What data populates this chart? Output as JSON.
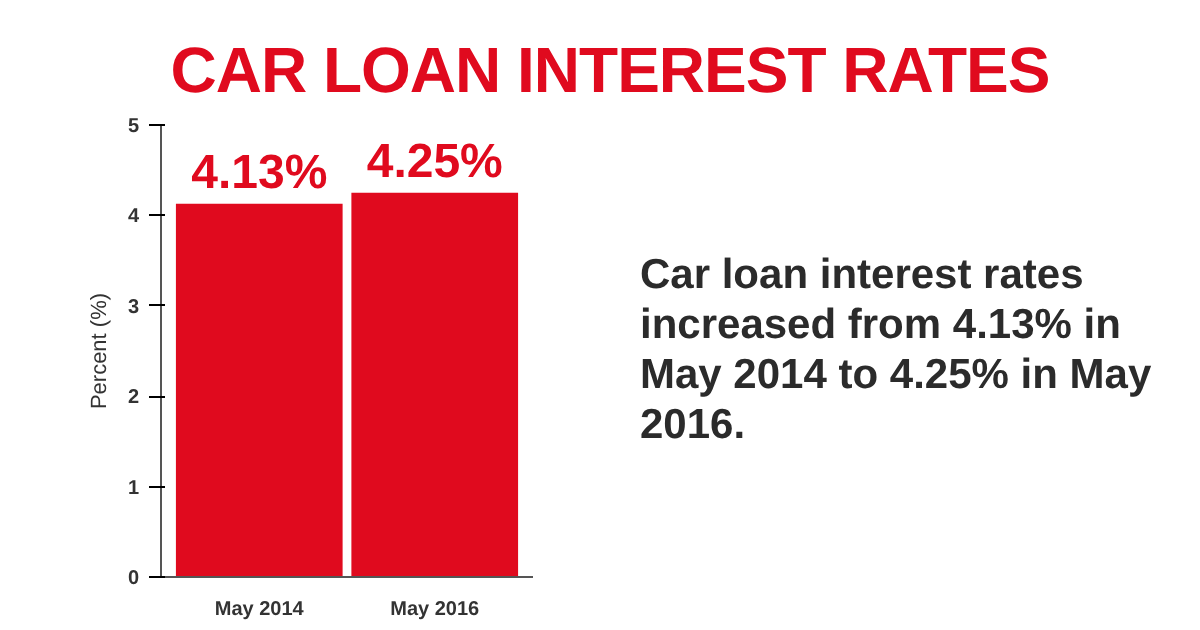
{
  "chart_data": {
    "type": "bar",
    "title": "CAR LOAN INTEREST RATES",
    "ylabel": "Percent (%)",
    "categories": [
      "May 2014",
      "May 2016"
    ],
    "values": [
      4.13,
      4.25
    ],
    "value_labels": [
      "4.13%",
      "4.25%"
    ],
    "color": "#e00a1e",
    "ylim": [
      0,
      5
    ],
    "yticks": [
      0,
      1,
      2,
      3,
      4,
      5
    ],
    "grid": false,
    "annotations": [
      "Car loan interest rates increased from 4.13% in May 2014 to 4.25% in May 2016."
    ]
  }
}
